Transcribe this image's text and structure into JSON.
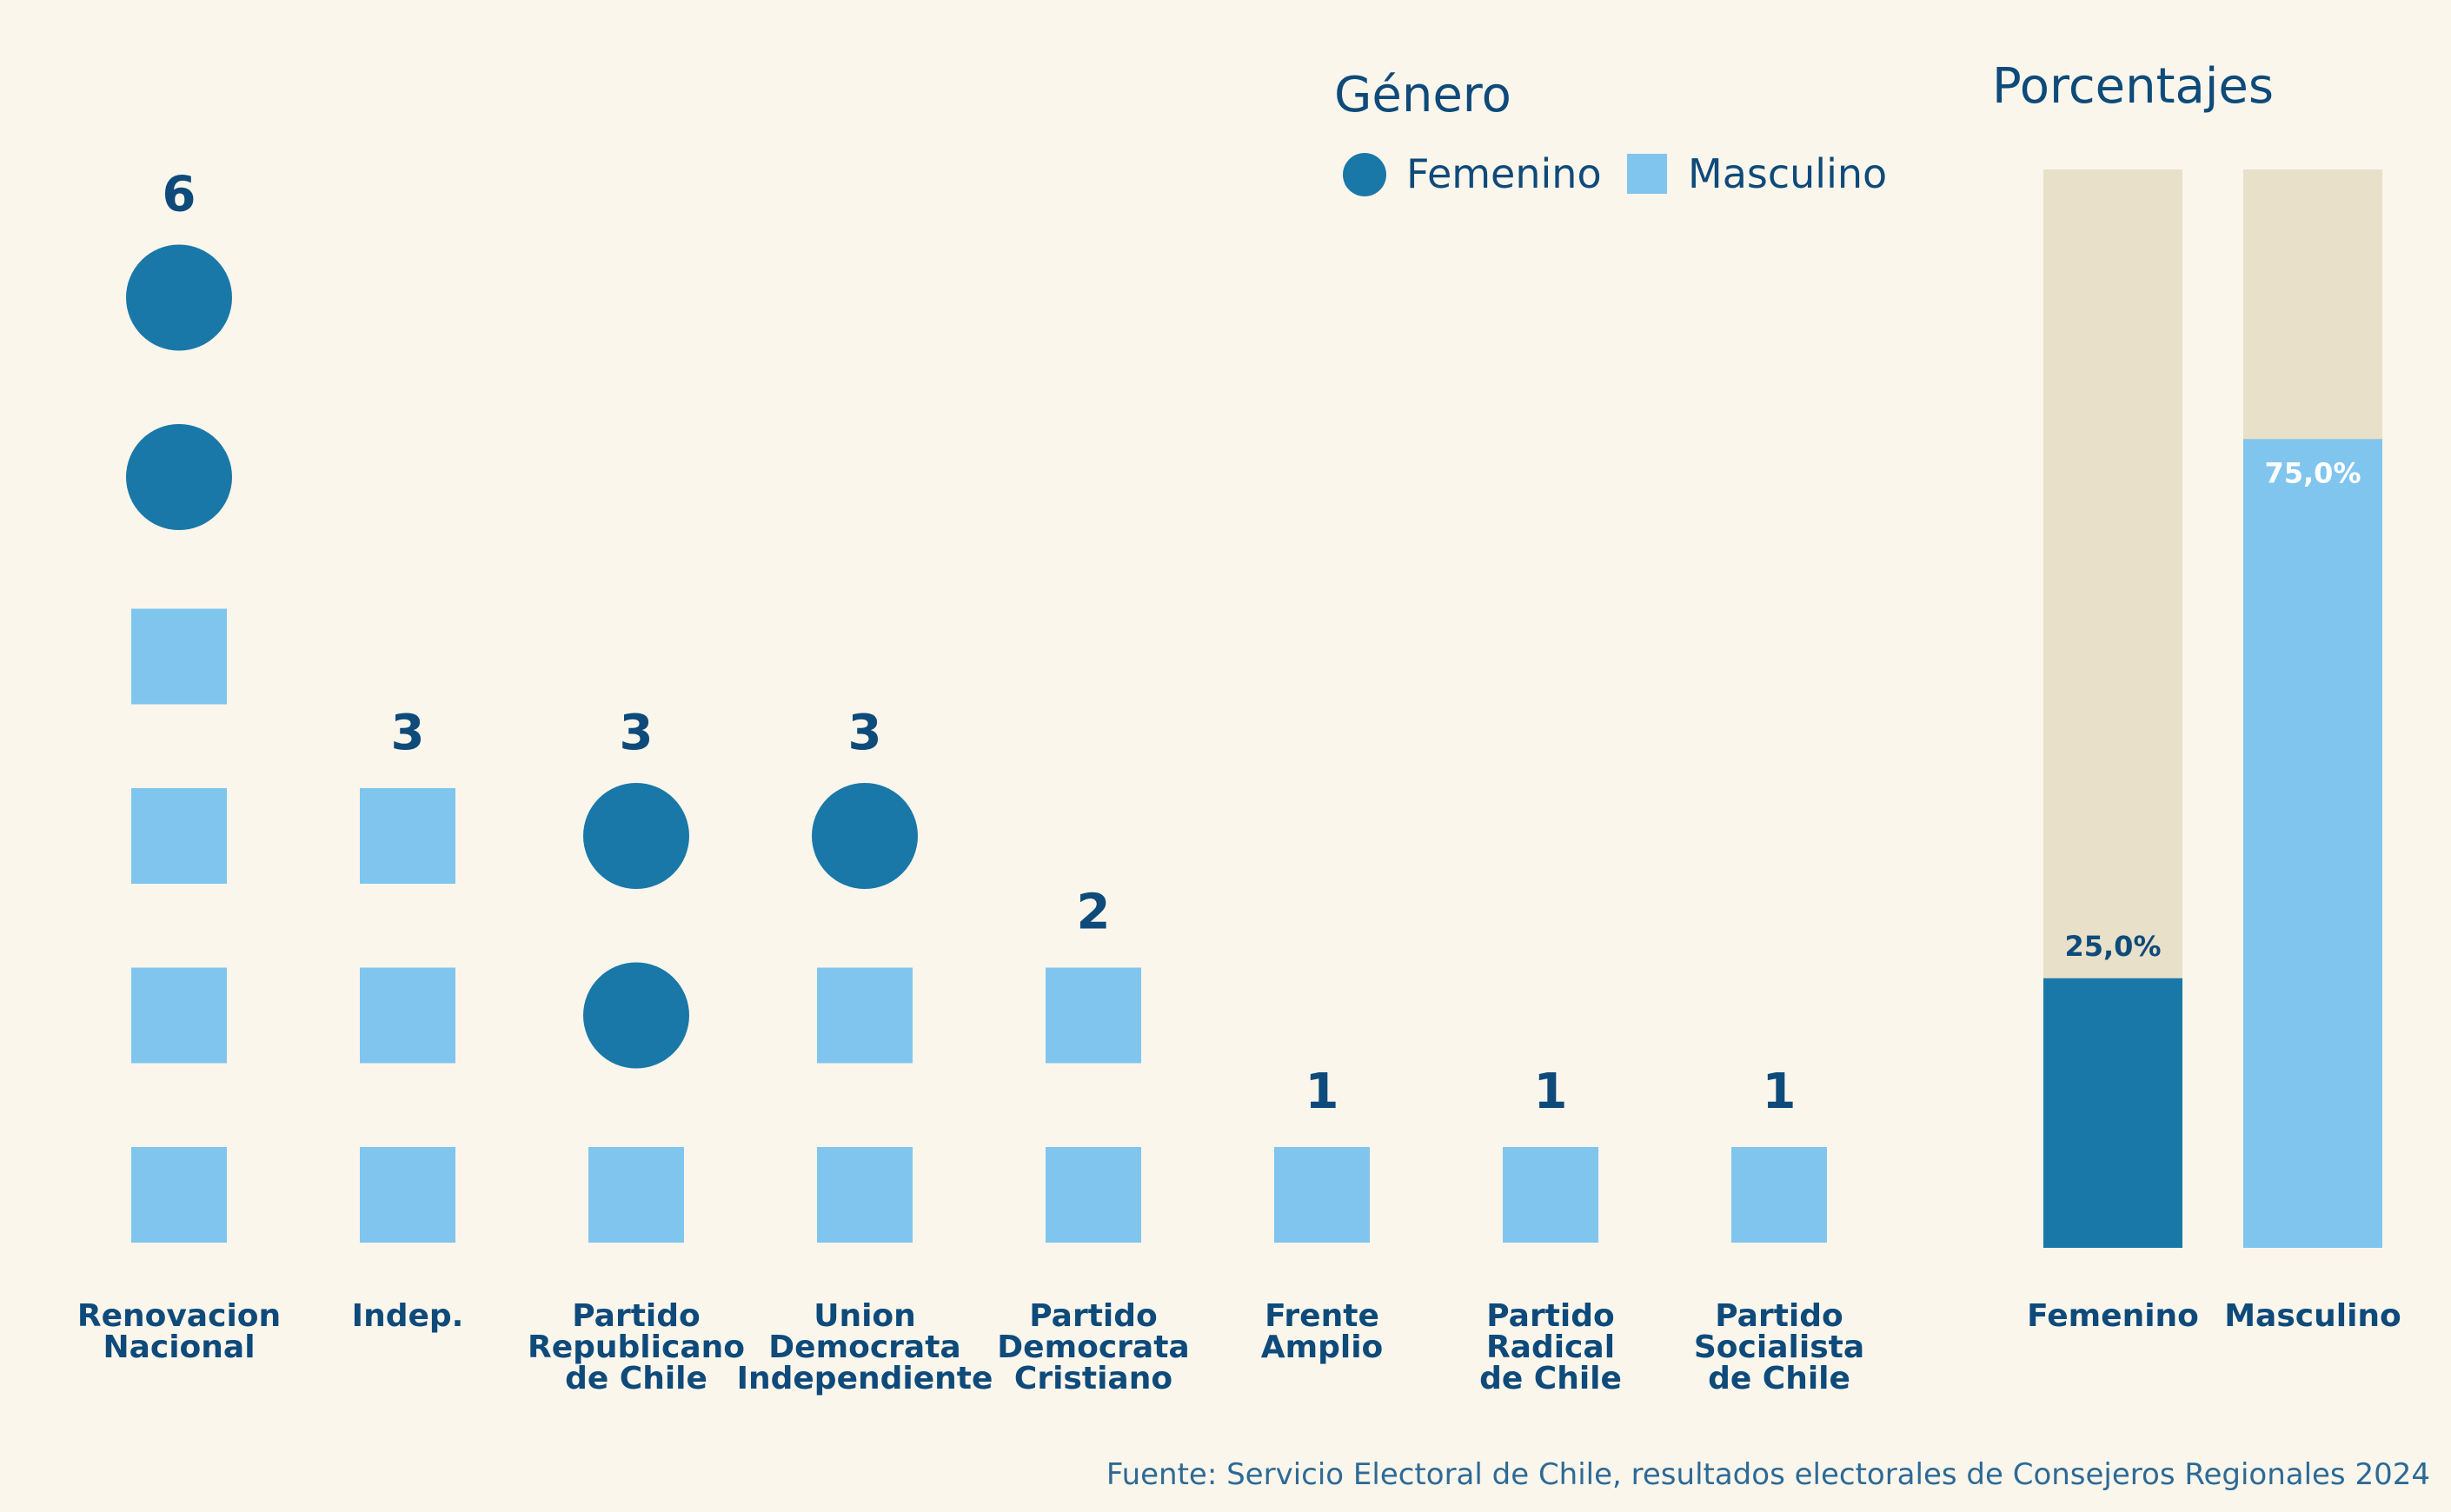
{
  "chart_data": [
    {
      "type": "scatter",
      "categories": [
        "Renovacion Nacional",
        "Indep.",
        "Partido Republicano de Chile",
        "Union Democrata Independiente",
        "Partido Democrata Cristiano",
        "Frente Amplio",
        "Partido Radical de Chile",
        "Partido Socialista de Chile"
      ],
      "category_lines": [
        [
          "Renovacion",
          "Nacional"
        ],
        [
          "Indep."
        ],
        [
          "Partido",
          "Republicano",
          "de Chile"
        ],
        [
          "Union",
          "Democrata",
          "Independiente"
        ],
        [
          "Partido",
          "Democrata",
          "Cristiano"
        ],
        [
          "Frente",
          "Amplio"
        ],
        [
          "Partido",
          "Radical",
          "de Chile"
        ],
        [
          "Partido",
          "Socialista",
          "de Chile"
        ]
      ],
      "totals": [
        6,
        3,
        3,
        3,
        2,
        1,
        1,
        1
      ],
      "series": [
        {
          "name": "Femenino",
          "values": [
            2,
            0,
            2,
            1,
            0,
            0,
            0,
            0
          ],
          "color": "#1a78a8",
          "shape": "circle"
        },
        {
          "name": "Masculino",
          "values": [
            4,
            3,
            1,
            2,
            2,
            1,
            1,
            1
          ],
          "color": "#80c5ee",
          "shape": "square"
        }
      ],
      "legend": {
        "title": "Género",
        "placement": "top-right"
      }
    },
    {
      "type": "bar",
      "title": "Porcentajes",
      "categories": [
        "Femenino",
        "Masculino"
      ],
      "values": [
        25.0,
        75.0
      ],
      "value_labels": [
        "25,0%",
        "75,0%"
      ],
      "ylim": [
        0,
        100
      ],
      "colors": [
        "#1a78a8",
        "#80c5ee"
      ],
      "background_color": "#e8e0c8"
    }
  ],
  "source": "Fuente: Servicio Electoral de Chile, resultados electorales de Consejeros Regionales 2024"
}
